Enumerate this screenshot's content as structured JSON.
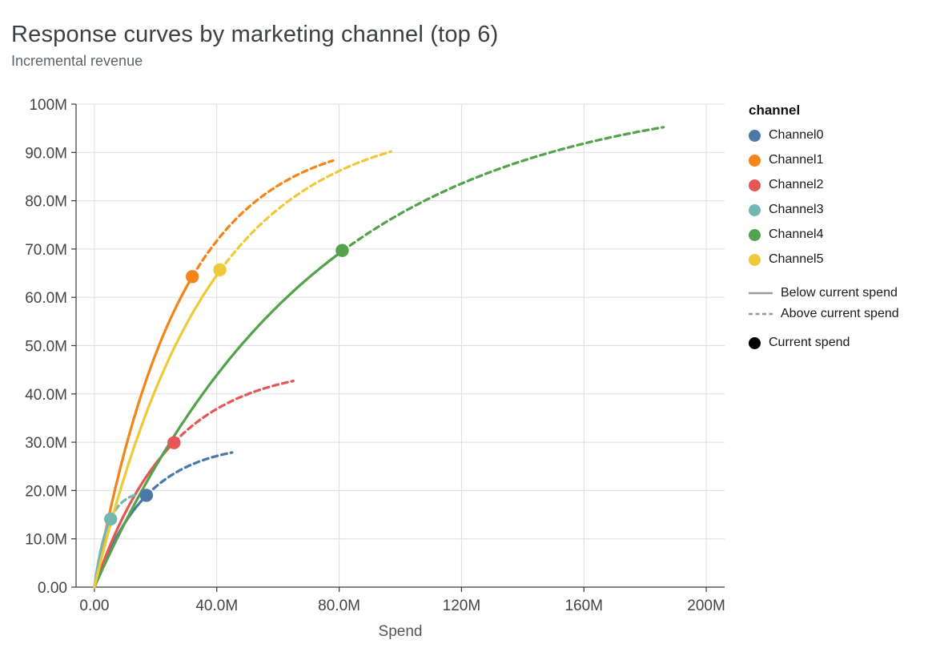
{
  "title": "Response curves by marketing channel (top 6)",
  "subtitle": "Incremental revenue",
  "chart_data": {
    "type": "line",
    "title": "Response curves by marketing channel (top 6)",
    "ylabel": "Incremental revenue",
    "xlabel": "Spend",
    "grid": true,
    "legend_position": "right",
    "xlim": [
      -6,
      206
    ],
    "ylim": [
      0,
      100
    ],
    "units": "millions of dollars",
    "curve_model": "incremental_revenue = saturation_revenue_m * (1 - exp(-spend / spend_scale_m)), values in $M",
    "x_ticks": [
      {
        "value": 0,
        "label": "0.00"
      },
      {
        "value": 40,
        "label": "40.0M"
      },
      {
        "value": 80,
        "label": "80.0M"
      },
      {
        "value": 120,
        "label": "120M"
      },
      {
        "value": 160,
        "label": "160M"
      },
      {
        "value": 200,
        "label": "200M"
      }
    ],
    "y_ticks": [
      {
        "value": 0,
        "label": "0.00"
      },
      {
        "value": 10,
        "label": "10.0M"
      },
      {
        "value": 20,
        "label": "20.0M"
      },
      {
        "value": 30,
        "label": "30.0M"
      },
      {
        "value": 40,
        "label": "40.0M"
      },
      {
        "value": 50,
        "label": "50.0M"
      },
      {
        "value": 60,
        "label": "60.0M"
      },
      {
        "value": 70,
        "label": "70.0M"
      },
      {
        "value": 80,
        "label": "80.0M"
      },
      {
        "value": 90,
        "label": "90.0M"
      },
      {
        "value": 100,
        "label": "100M"
      }
    ],
    "legend": {
      "title": "channel",
      "style_items": [
        {
          "label": "Below current spend",
          "style": "solid"
        },
        {
          "label": "Above current spend",
          "style": "dashed"
        }
      ],
      "point_item": {
        "label": "Current spend",
        "color": "#000000"
      }
    },
    "series": [
      {
        "name": "Channel0",
        "color": "#4c78a8",
        "saturation_revenue_m": 30,
        "spend_scale_m": 17,
        "current_spend": {
          "x": 17,
          "y": 19
        },
        "x_end": 45,
        "y_end": 27.9
      },
      {
        "name": "Channel1",
        "color": "#f58518",
        "saturation_revenue_m": 94,
        "spend_scale_m": 27.8,
        "current_spend": {
          "x": 32,
          "y": 64.3
        },
        "x_end": 78,
        "y_end": 88.3
      },
      {
        "name": "Channel2",
        "color": "#e45756",
        "saturation_revenue_m": 46,
        "spend_scale_m": 24.7,
        "current_spend": {
          "x": 26,
          "y": 29.9
        },
        "x_end": 65,
        "y_end": 42.7
      },
      {
        "name": "Channel3",
        "color": "#72b7b2",
        "saturation_revenue_m": 20,
        "spend_scale_m": 4.3,
        "current_spend": {
          "x": 5.3,
          "y": 14.1
        },
        "x_end": 14,
        "y_end": 19.2
      },
      {
        "name": "Channel4",
        "color": "#54a24b",
        "saturation_revenue_m": 103,
        "spend_scale_m": 72,
        "current_spend": {
          "x": 81,
          "y": 69.7
        },
        "x_end": 186,
        "y_end": 95.2
      },
      {
        "name": "Channel5",
        "color": "#eeca3b",
        "saturation_revenue_m": 97,
        "spend_scale_m": 36.5,
        "current_spend": {
          "x": 41,
          "y": 65.7
        },
        "x_end": 97,
        "y_end": 90.2
      }
    ]
  }
}
